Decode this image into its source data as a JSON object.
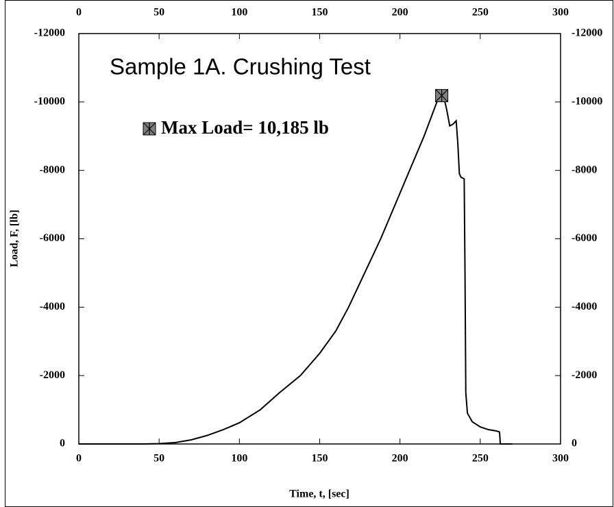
{
  "chart_data": {
    "type": "line",
    "title": "Sample 1A. Crushing Test",
    "annotation": "Max Load= 10,185 lb",
    "x_label": "Time, t, [sec]",
    "y_label": "Load, F, [lb]",
    "xlim": [
      0,
      300
    ],
    "xticks": [
      0,
      50,
      100,
      150,
      200,
      250,
      300
    ],
    "ylim": [
      0,
      -12000
    ],
    "yticks": [
      -12000,
      -10000,
      -8000,
      -6000,
      -4000,
      -2000,
      0
    ],
    "color": "#000000",
    "x": [
      0,
      40,
      50,
      60,
      70,
      80,
      90,
      100,
      113,
      125,
      138,
      150,
      160,
      168,
      178,
      188,
      197,
      206,
      215,
      223,
      226,
      228,
      229,
      231,
      233,
      235,
      236,
      237,
      238,
      240,
      240.5,
      241,
      242,
      245,
      250,
      255,
      260,
      262,
      262.5,
      270
    ],
    "values": [
      0,
      0,
      -10,
      -40,
      -120,
      -250,
      -420,
      -620,
      -1000,
      -1500,
      -2000,
      -2650,
      -3300,
      -4000,
      -5000,
      -6000,
      -7000,
      -8000,
      -9000,
      -10000,
      -10185,
      -10000,
      -9800,
      -9300,
      -9350,
      -9450,
      -8800,
      -7900,
      -7800,
      -7750,
      -5000,
      -1500,
      -900,
      -650,
      -500,
      -420,
      -380,
      -350,
      0,
      0
    ],
    "max_point": {
      "x": 226,
      "value": -10185,
      "color": "#808080"
    }
  }
}
